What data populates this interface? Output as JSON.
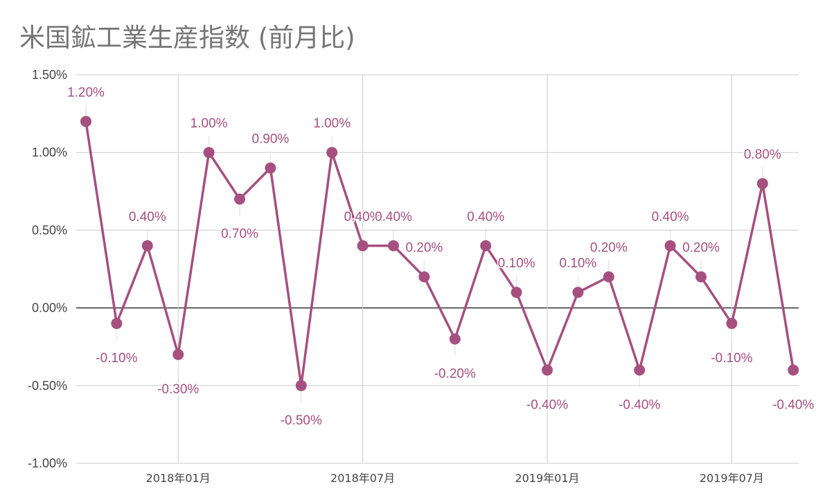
{
  "chart_data": {
    "type": "line",
    "title": "米国鉱工業生産指数 (前月比)",
    "xlabel": "",
    "ylabel": "",
    "x": [
      "2017年10月",
      "2017年11月",
      "2017年12月",
      "2018年01月",
      "2018年02月",
      "2018年03月",
      "2018年04月",
      "2018年05月",
      "2018年06月",
      "2018年07月",
      "2018年08月",
      "2018年09月",
      "2018年10月",
      "2018年11月",
      "2018年12月",
      "2019年01月",
      "2019年02月",
      "2019年03月",
      "2019年04月",
      "2019年05月",
      "2019年06月",
      "2019年07月",
      "2019年08月",
      "2019年09月"
    ],
    "x_ticks": [
      "2018年01月",
      "2018年07月",
      "2019年01月",
      "2019年07月"
    ],
    "series": [
      {
        "values": [
          1.2,
          -0.1,
          0.4,
          -0.3,
          1.0,
          0.7,
          0.9,
          -0.5,
          1.0,
          0.4,
          0.4,
          0.2,
          -0.2,
          0.4,
          0.1,
          -0.4,
          0.1,
          0.2,
          -0.4,
          0.4,
          0.2,
          -0.1,
          0.8,
          -0.4
        ],
        "labels": [
          "1.20%",
          "-0.10%",
          "0.40%",
          "-0.30%",
          "1.00%",
          "0.70%",
          "0.90%",
          "-0.50%",
          "1.00%",
          "0.40%",
          "0.40%",
          "0.20%",
          "-0.20%",
          "0.40%",
          "0.10%",
          "-0.40%",
          "0.10%",
          "0.20%",
          "-0.40%",
          "0.40%",
          "0.20%",
          "-0.10%",
          "0.80%",
          "-0.40%"
        ]
      }
    ],
    "y_ticks": [
      1.5,
      1.0,
      0.5,
      0.0,
      -0.5,
      -1.0
    ],
    "y_tick_labels": [
      "1.50%",
      "1.00%",
      "0.50%",
      "0.00%",
      "-0.50%",
      "-1.00%"
    ],
    "ylim": [
      -1.0,
      1.5
    ],
    "grid": true,
    "legend": "none",
    "colors": {
      "line": "#a5507e",
      "label": "#a5507e",
      "grid": "#cccccc",
      "zero": "#333333"
    }
  }
}
